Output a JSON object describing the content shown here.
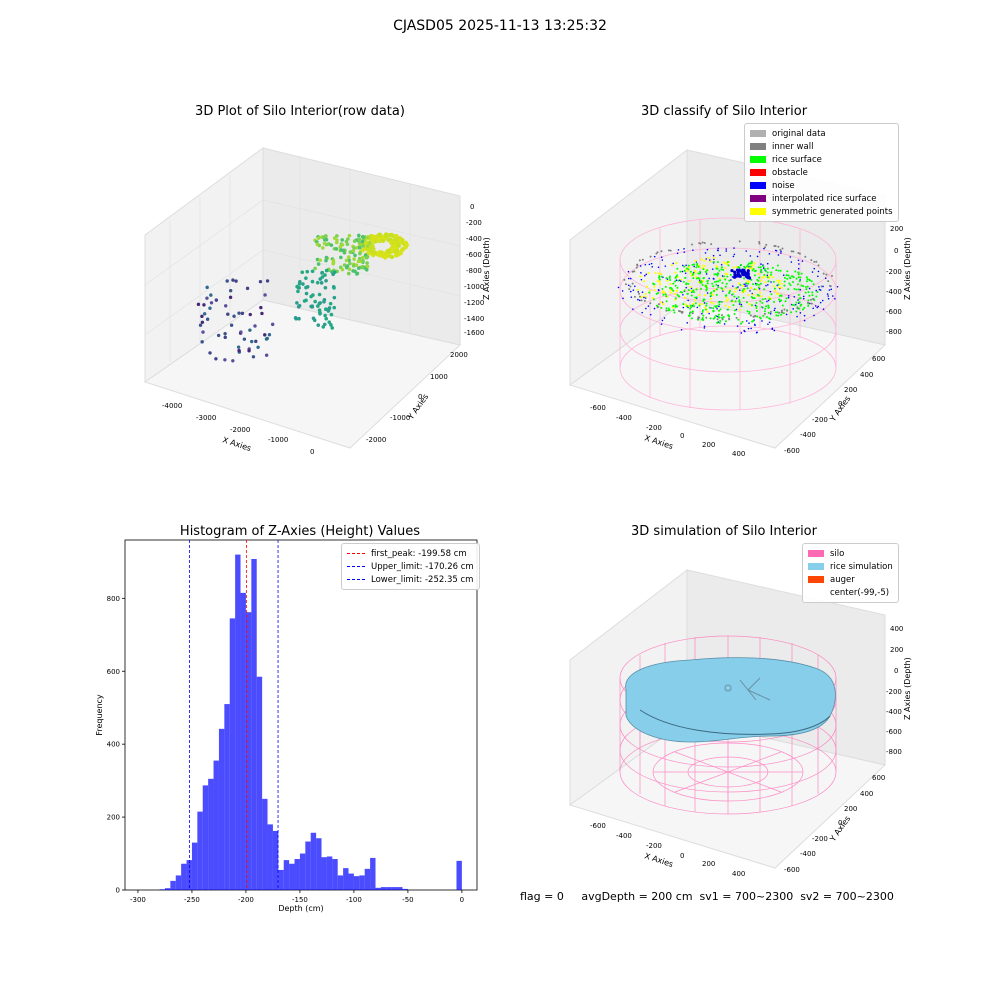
{
  "page": {
    "suptitle": "CJASD05 2025-11-13 13:25:32"
  },
  "panels": {
    "raw": {
      "title": "3D Plot of Silo Interior(row data)",
      "xlabel": "X Axies",
      "ylabel": "Y Axies",
      "zlabel": "Z Axies (Depth)",
      "xticks": [
        "-4000",
        "-3000",
        "-2000",
        "-1000",
        "0"
      ],
      "yticks": [
        "2000",
        "1000",
        "0",
        "-1000",
        "-2000"
      ],
      "zticks": [
        "0",
        "-200",
        "-400",
        "-600",
        "-800",
        "-1000",
        "-1200",
        "-1400",
        "-1600"
      ]
    },
    "classify": {
      "title": "3D classify of Silo Interior",
      "xlabel": "X Axies",
      "ylabel": "Y Axies",
      "zlabel": "Z Axies (Depth)",
      "xticks": [
        "-600",
        "-400",
        "-200",
        "0",
        "200",
        "400"
      ],
      "yticks": [
        "600",
        "400",
        "200",
        "0",
        "-200",
        "-400",
        "-600"
      ],
      "zticks": [
        "200",
        "0",
        "-200",
        "-400",
        "-600",
        "-800"
      ],
      "legend": [
        {
          "label": "original data",
          "color": "#b0b0b0"
        },
        {
          "label": "inner wall",
          "color": "#808080"
        },
        {
          "label": "rice surface",
          "color": "#00ff00"
        },
        {
          "label": "obstacle",
          "color": "#ff0000"
        },
        {
          "label": "noise",
          "color": "#0000ff"
        },
        {
          "label": "interpolated rice surface",
          "color": "#800080"
        },
        {
          "label": "symmetric generated points",
          "color": "#ffff00"
        }
      ]
    },
    "simulation": {
      "title": "3D simulation of Silo Interior",
      "xlabel": "X Axies",
      "ylabel": "Y Axies",
      "zlabel": "Z Axies (Depth)",
      "xticks": [
        "-600",
        "-400",
        "-200",
        "0",
        "200",
        "400"
      ],
      "yticks": [
        "600",
        "400",
        "200",
        "0",
        "-200",
        "-400",
        "-600"
      ],
      "zticks": [
        "400",
        "200",
        "0",
        "-200",
        "-400",
        "-600",
        "-800"
      ],
      "legend": [
        {
          "label": "silo",
          "color": "#ff69b4"
        },
        {
          "label": "rice simulation",
          "color": "#87ceeb"
        },
        {
          "label": "auger",
          "color": "#ff4500"
        },
        {
          "label": "center(-99,-5)",
          "color": ""
        }
      ]
    },
    "status": "flag = 0     avgDepth = 200 cm  sv1 = 700~2300  sv2 = 700~2300"
  },
  "chart_data": {
    "type": "bar",
    "title": "Histogram of Z-Axies (Height) Values",
    "xlabel": "Depth (cm)",
    "ylabel": "Frequency",
    "xlim": [
      -300,
      0
    ],
    "ylim": [
      0,
      950
    ],
    "xticks": [
      -300,
      -250,
      -200,
      -150,
      -100,
      -50,
      0
    ],
    "yticks": [
      0,
      200,
      400,
      600,
      800
    ],
    "bar_color": "#0000ff",
    "bins": [
      {
        "x": -280,
        "v": 2
      },
      {
        "x": -275,
        "v": 5
      },
      {
        "x": -270,
        "v": 25
      },
      {
        "x": -265,
        "v": 40
      },
      {
        "x": -260,
        "v": 72
      },
      {
        "x": -255,
        "v": 82
      },
      {
        "x": -250,
        "v": 130
      },
      {
        "x": -245,
        "v": 215
      },
      {
        "x": -240,
        "v": 287
      },
      {
        "x": -235,
        "v": 305
      },
      {
        "x": -230,
        "v": 355
      },
      {
        "x": -225,
        "v": 442
      },
      {
        "x": -220,
        "v": 510
      },
      {
        "x": -215,
        "v": 745
      },
      {
        "x": -210,
        "v": 920
      },
      {
        "x": -205,
        "v": 815
      },
      {
        "x": -200,
        "v": 762
      },
      {
        "x": -195,
        "v": 908
      },
      {
        "x": -190,
        "v": 585
      },
      {
        "x": -185,
        "v": 250
      },
      {
        "x": -180,
        "v": 180
      },
      {
        "x": -175,
        "v": 162
      },
      {
        "x": -170,
        "v": 55
      },
      {
        "x": -165,
        "v": 82
      },
      {
        "x": -160,
        "v": 72
      },
      {
        "x": -155,
        "v": 85
      },
      {
        "x": -150,
        "v": 100
      },
      {
        "x": -145,
        "v": 133
      },
      {
        "x": -140,
        "v": 157
      },
      {
        "x": -135,
        "v": 142
      },
      {
        "x": -130,
        "v": 90
      },
      {
        "x": -125,
        "v": 92
      },
      {
        "x": -120,
        "v": 85
      },
      {
        "x": -115,
        "v": 40
      },
      {
        "x": -110,
        "v": 60
      },
      {
        "x": -105,
        "v": 45
      },
      {
        "x": -100,
        "v": 38
      },
      {
        "x": -95,
        "v": 40
      },
      {
        "x": -90,
        "v": 58
      },
      {
        "x": -85,
        "v": 88
      },
      {
        "x": -80,
        "v": 6
      },
      {
        "x": -75,
        "v": 8
      },
      {
        "x": -70,
        "v": 8
      },
      {
        "x": -65,
        "v": 8
      },
      {
        "x": -60,
        "v": 8
      },
      {
        "x": -55,
        "v": 3
      },
      {
        "x": -50,
        "v": 0
      },
      {
        "x": -5,
        "v": 80
      }
    ],
    "bin_width": 5,
    "vlines": [
      {
        "x": -199.58,
        "label": "first_peak: -199.58 cm",
        "color": "#ff0000"
      },
      {
        "x": -170.26,
        "label": "Upper_limit: -170.26 cm",
        "color": "#0000ff"
      },
      {
        "x": -252.35,
        "label": "Lower_limit: -252.35 cm",
        "color": "#0000ff"
      }
    ]
  }
}
